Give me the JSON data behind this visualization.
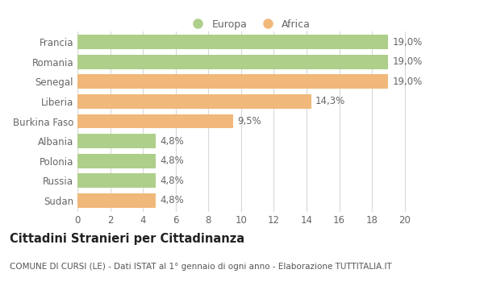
{
  "categories": [
    "Francia",
    "Romania",
    "Senegal",
    "Liberia",
    "Burkina Faso",
    "Albania",
    "Polonia",
    "Russia",
    "Sudan"
  ],
  "values": [
    19.0,
    19.0,
    19.0,
    14.3,
    9.5,
    4.8,
    4.8,
    4.8,
    4.8
  ],
  "labels": [
    "19,0%",
    "19,0%",
    "19,0%",
    "14,3%",
    "9,5%",
    "4,8%",
    "4,8%",
    "4,8%",
    "4,8%"
  ],
  "colors": [
    "#aecf8a",
    "#aecf8a",
    "#f0b87a",
    "#f0b87a",
    "#f0b87a",
    "#aecf8a",
    "#aecf8a",
    "#aecf8a",
    "#f0b87a"
  ],
  "europa_color": "#aecf8a",
  "africa_color": "#f0b87a",
  "title": "Cittadini Stranieri per Cittadinanza",
  "subtitle": "COMUNE DI CURSI (LE) - Dati ISTAT al 1° gennaio di ogni anno - Elaborazione TUTTITALIA.IT",
  "xlim": [
    0,
    21
  ],
  "xticks": [
    0,
    2,
    4,
    6,
    8,
    10,
    12,
    14,
    16,
    18,
    20
  ],
  "background_color": "#ffffff",
  "grid_color": "#d8d8d8",
  "bar_height": 0.72,
  "label_fontsize": 8.5,
  "tick_fontsize": 8.5,
  "title_fontsize": 10.5,
  "subtitle_fontsize": 7.5,
  "legend_fontsize": 9
}
